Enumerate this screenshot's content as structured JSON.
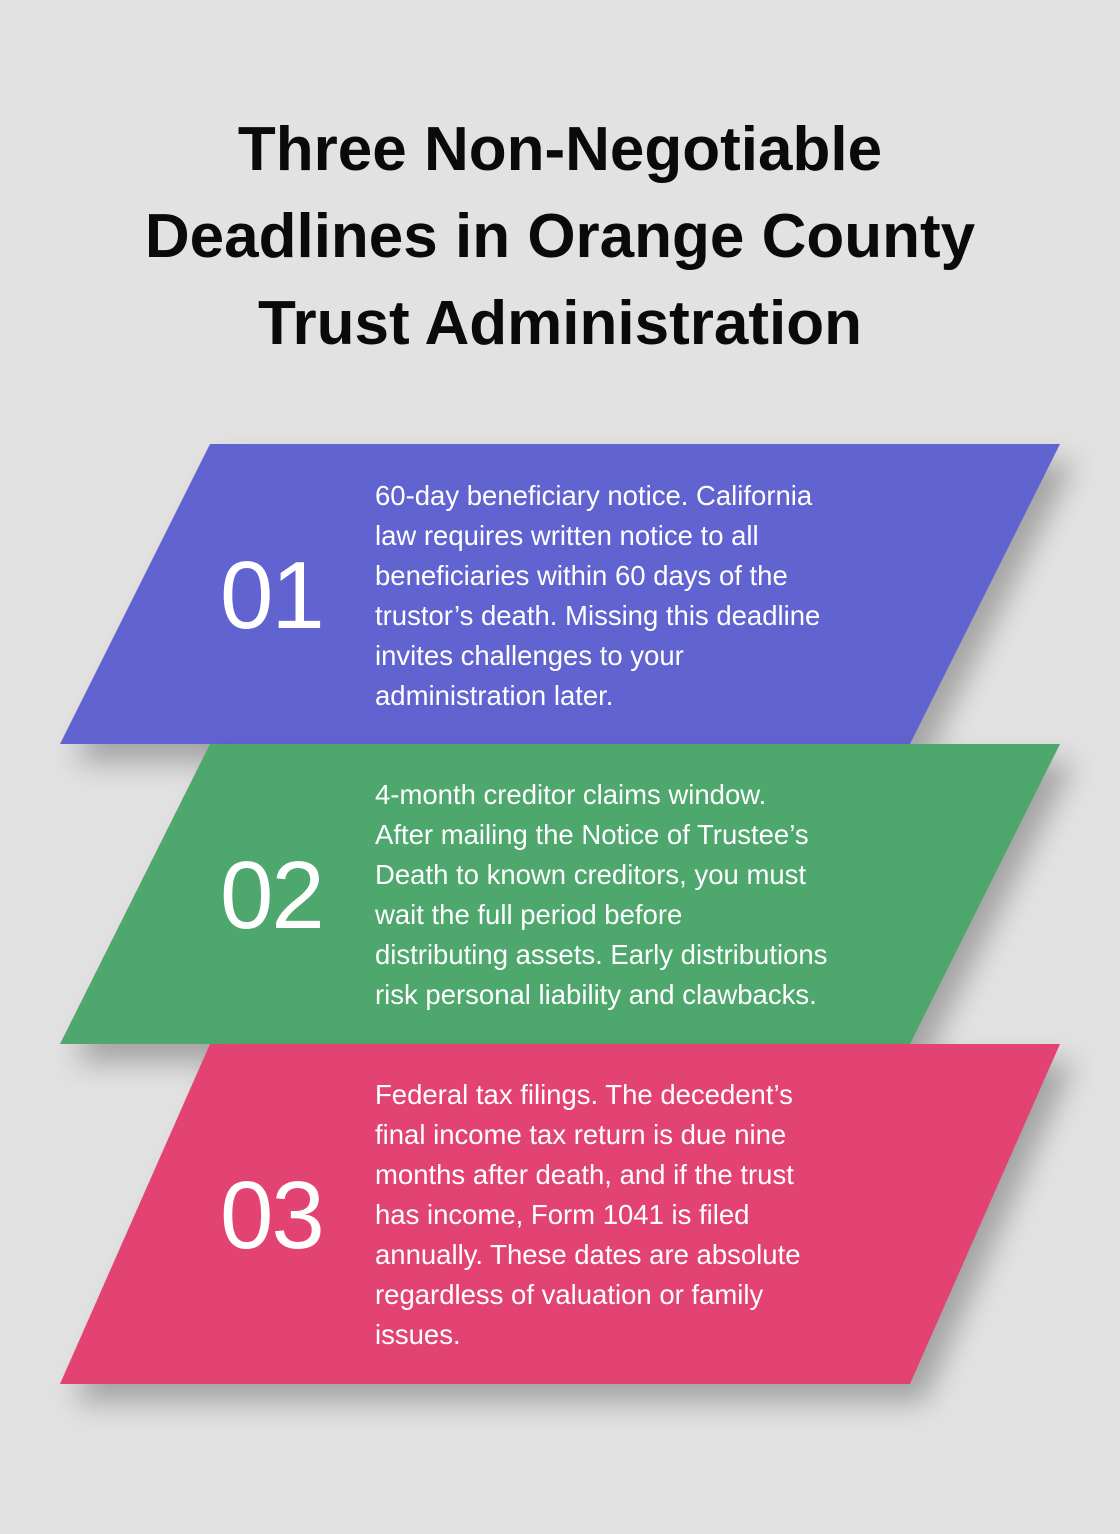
{
  "title_lines": [
    "Three Non-Negotiable",
    "Deadlines in Orange County",
    "Trust Administration"
  ],
  "steps": [
    {
      "number": "01",
      "color": "#6063d0",
      "lines": [
        "60-day beneficiary notice. California",
        "law requires written notice to all",
        "beneficiaries within 60 days of the",
        "trustor’s death. Missing this deadline",
        "invites challenges to your",
        "administration later."
      ]
    },
    {
      "number": "02",
      "color": "#4ea76d",
      "lines": [
        "4-month creditor claims window.",
        "After mailing the Notice of Trustee’s",
        "Death to known creditors, you must",
        "wait the full period before",
        "distributing assets. Early distributions",
        "risk personal liability and clawbacks."
      ]
    },
    {
      "number": "03",
      "color": "#e34373",
      "lines": [
        "Federal tax filings. The decedent’s",
        "final income tax return is due nine",
        "months after death, and if the trust",
        "has income, Form 1041 is filed",
        "annually. These dates are absolute",
        "regardless of valuation or family",
        "issues."
      ]
    }
  ]
}
